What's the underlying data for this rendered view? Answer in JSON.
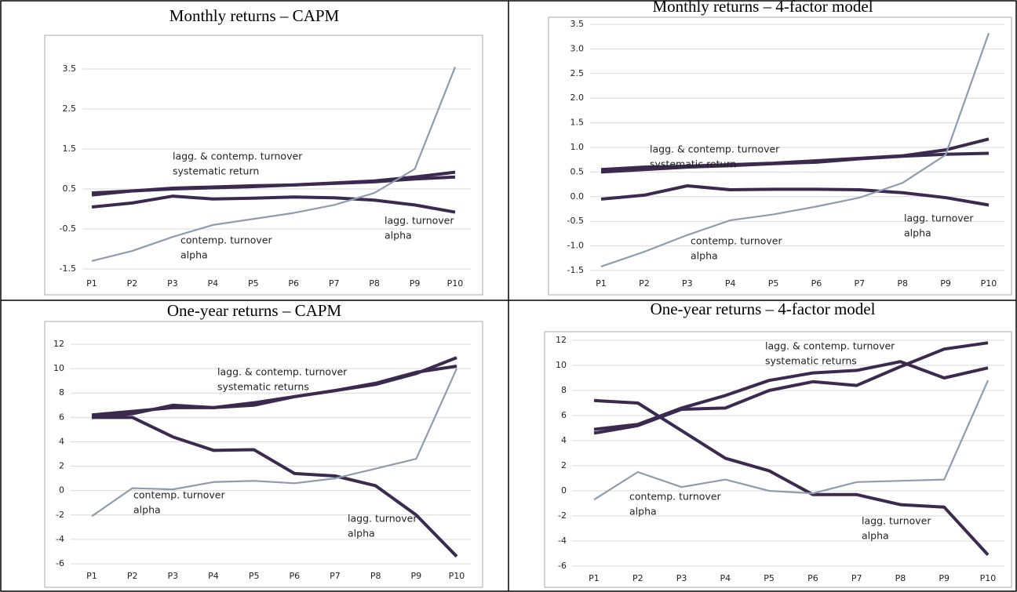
{
  "chart_data": [
    {
      "type": "line",
      "title": "Monthly returns – CAPM",
      "categories": [
        "P1",
        "P2",
        "P3",
        "P4",
        "P5",
        "P6",
        "P7",
        "P8",
        "P9",
        "P10"
      ],
      "ylim": [
        -1.5,
        3.5
      ],
      "yticks": [
        -1.5,
        -0.5,
        0.5,
        1.5,
        2.5,
        3.5
      ],
      "grid": true,
      "series": [
        {
          "color": "#3b2a4f",
          "values": [
            0.35,
            0.45,
            0.52,
            0.55,
            0.58,
            0.6,
            0.64,
            0.68,
            0.75,
            0.8
          ]
        },
        {
          "color": "#3b2a4f",
          "values": [
            0.4,
            0.45,
            0.5,
            0.53,
            0.56,
            0.6,
            0.65,
            0.7,
            0.8,
            0.92
          ]
        },
        {
          "color": "#3b2a4f",
          "values": [
            0.05,
            0.15,
            0.32,
            0.25,
            0.27,
            0.3,
            0.28,
            0.22,
            0.1,
            -0.08
          ]
        },
        {
          "color": "#8e9cb0",
          "values": [
            -1.3,
            -1.05,
            -0.7,
            -0.4,
            -0.25,
            -0.1,
            0.1,
            0.4,
            1.0,
            3.55
          ]
        }
      ],
      "annotations": [
        [
          "lagg. & contemp. turnover",
          "systematic return"
        ],
        [
          "contemp. turnover",
          "alpha"
        ],
        [
          "lagg. turnover",
          "alpha"
        ]
      ]
    },
    {
      "type": "line",
      "title": "Monthly returns – 4-factor model",
      "categories": [
        "P1",
        "P2",
        "P3",
        "P4",
        "P5",
        "P6",
        "P7",
        "P8",
        "P9",
        "P10"
      ],
      "ylim": [
        -1.5,
        3.5
      ],
      "yticks": [
        -1.5,
        {
          "value": -1,
          "label": "-1.0"
        },
        -0.5,
        {
          "value": 0,
          "label": "0.0"
        },
        0.5,
        {
          "value": 1,
          "label": "1.0"
        },
        1.5,
        {
          "value": 2,
          "label": "2.0"
        },
        2.5,
        {
          "value": 3,
          "label": "3.0"
        },
        3.5
      ],
      "grid": true,
      "series": [
        {
          "color": "#3b2a4f",
          "values": [
            0.5,
            0.55,
            0.6,
            0.63,
            0.67,
            0.7,
            0.77,
            0.82,
            0.86,
            0.88
          ]
        },
        {
          "color": "#3b2a4f",
          "values": [
            0.55,
            0.6,
            0.62,
            0.65,
            0.68,
            0.73,
            0.78,
            0.83,
            0.95,
            1.17
          ]
        },
        {
          "color": "#3b2a4f",
          "values": [
            -0.05,
            0.03,
            0.22,
            0.14,
            0.15,
            0.15,
            0.14,
            0.08,
            -0.02,
            -0.17
          ]
        },
        {
          "color": "#8e9cb0",
          "values": [
            -1.42,
            -1.12,
            -0.78,
            -0.48,
            -0.36,
            -0.2,
            -0.02,
            0.28,
            0.85,
            3.32
          ]
        }
      ],
      "annotations": [
        [
          "lagg. & contemp. turnover",
          "systematic return"
        ],
        [
          "contemp. turnover",
          "alpha"
        ],
        [
          "lagg. turnover",
          "alpha"
        ]
      ]
    },
    {
      "type": "line",
      "title": "One-year returns – CAPM",
      "categories": [
        "P1",
        "P2",
        "P3",
        "P4",
        "P5",
        "P6",
        "P7",
        "P8",
        "P9",
        "P10"
      ],
      "ylim": [
        -6,
        12
      ],
      "yticks": [
        -6,
        -4,
        -2,
        0,
        2,
        4,
        6,
        8,
        10,
        12
      ],
      "grid": true,
      "series": [
        {
          "color": "#3b2a4f",
          "values": [
            6.2,
            6.5,
            6.8,
            6.8,
            7.0,
            7.7,
            8.2,
            8.8,
            9.7,
            10.2
          ]
        },
        {
          "color": "#3b2a4f",
          "values": [
            6.0,
            6.3,
            7.0,
            6.8,
            7.2,
            7.7,
            8.2,
            8.7,
            9.6,
            10.9
          ]
        },
        {
          "color": "#3b2a4f",
          "values": [
            6.0,
            6.0,
            4.4,
            3.3,
            3.35,
            1.4,
            1.2,
            0.4,
            -2.0,
            -5.4
          ]
        },
        {
          "color": "#8e9cb0",
          "values": [
            -2.1,
            0.2,
            0.1,
            0.7,
            0.8,
            0.6,
            1.0,
            1.8,
            2.6,
            10.0
          ]
        }
      ],
      "annotations": [
        [
          "lagg. & contemp. turnover",
          "systematic returns"
        ],
        [
          "contemp. turnover",
          "alpha"
        ],
        [
          "lagg. turnover",
          "alpha"
        ]
      ]
    },
    {
      "type": "line",
      "title": "One-year returns – 4-factor model",
      "categories": [
        "P1",
        "P2",
        "P3",
        "P4",
        "P5",
        "P6",
        "P7",
        "P8",
        "P9",
        "P10"
      ],
      "ylim": [
        -6,
        12
      ],
      "yticks": [
        -6,
        -4,
        -2,
        0,
        2,
        4,
        6,
        8,
        10,
        12
      ],
      "grid": true,
      "series": [
        {
          "color": "#3b2a4f",
          "values": [
            4.9,
            5.3,
            6.6,
            7.6,
            8.8,
            9.4,
            9.6,
            10.3,
            9.0,
            9.8
          ]
        },
        {
          "color": "#3b2a4f",
          "values": [
            4.6,
            5.2,
            6.5,
            6.6,
            8.0,
            8.7,
            8.4,
            9.9,
            11.3,
            11.8
          ]
        },
        {
          "color": "#3b2a4f",
          "values": [
            7.2,
            7.0,
            4.8,
            2.6,
            1.6,
            -0.3,
            -0.3,
            -1.1,
            -1.3,
            -5.1
          ]
        },
        {
          "color": "#8e9cb0",
          "values": [
            -0.7,
            1.5,
            0.3,
            0.9,
            0.0,
            -0.2,
            0.7,
            0.8,
            0.9,
            8.8
          ]
        }
      ],
      "annotations": [
        [
          "lagg. & contemp. turnover",
          "systematic returns"
        ],
        [
          "contemp. turnover",
          "alpha"
        ],
        [
          "lagg. turnover",
          "alpha"
        ]
      ]
    }
  ]
}
